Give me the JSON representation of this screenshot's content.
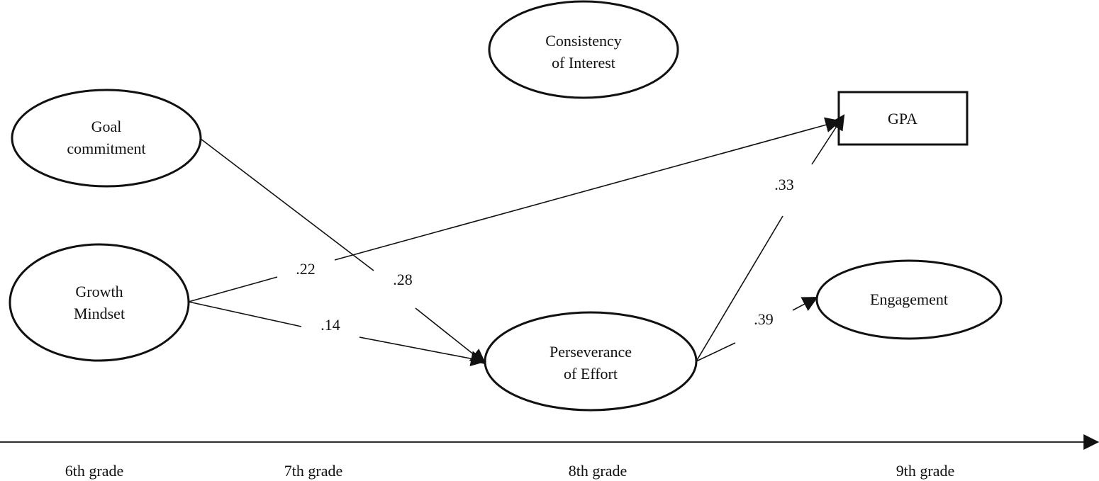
{
  "nodes": {
    "consistency": {
      "line1": "Consistency",
      "line2": "of Interest"
    },
    "goal": {
      "line1": "Goal",
      "line2": "commitment"
    },
    "growth": {
      "line1": "Growth",
      "line2": "Mindset"
    },
    "perseverance": {
      "line1": "Perseverance",
      "line2": "of Effort"
    },
    "gpa": {
      "label": "GPA"
    },
    "engagement": {
      "label": "Engagement"
    }
  },
  "paths": {
    "growth_to_gpa": ".22",
    "goal_to_perseverance": ".28",
    "growth_to_perseverance": ".14",
    "perseverance_to_gpa": ".33",
    "perseverance_to_engagement": ".39"
  },
  "timeline": {
    "grade6": "6th grade",
    "grade7": "7th grade",
    "grade8": "8th grade",
    "grade9": "9th grade"
  },
  "colors": {
    "stroke": "#111111",
    "background": "#ffffff"
  }
}
